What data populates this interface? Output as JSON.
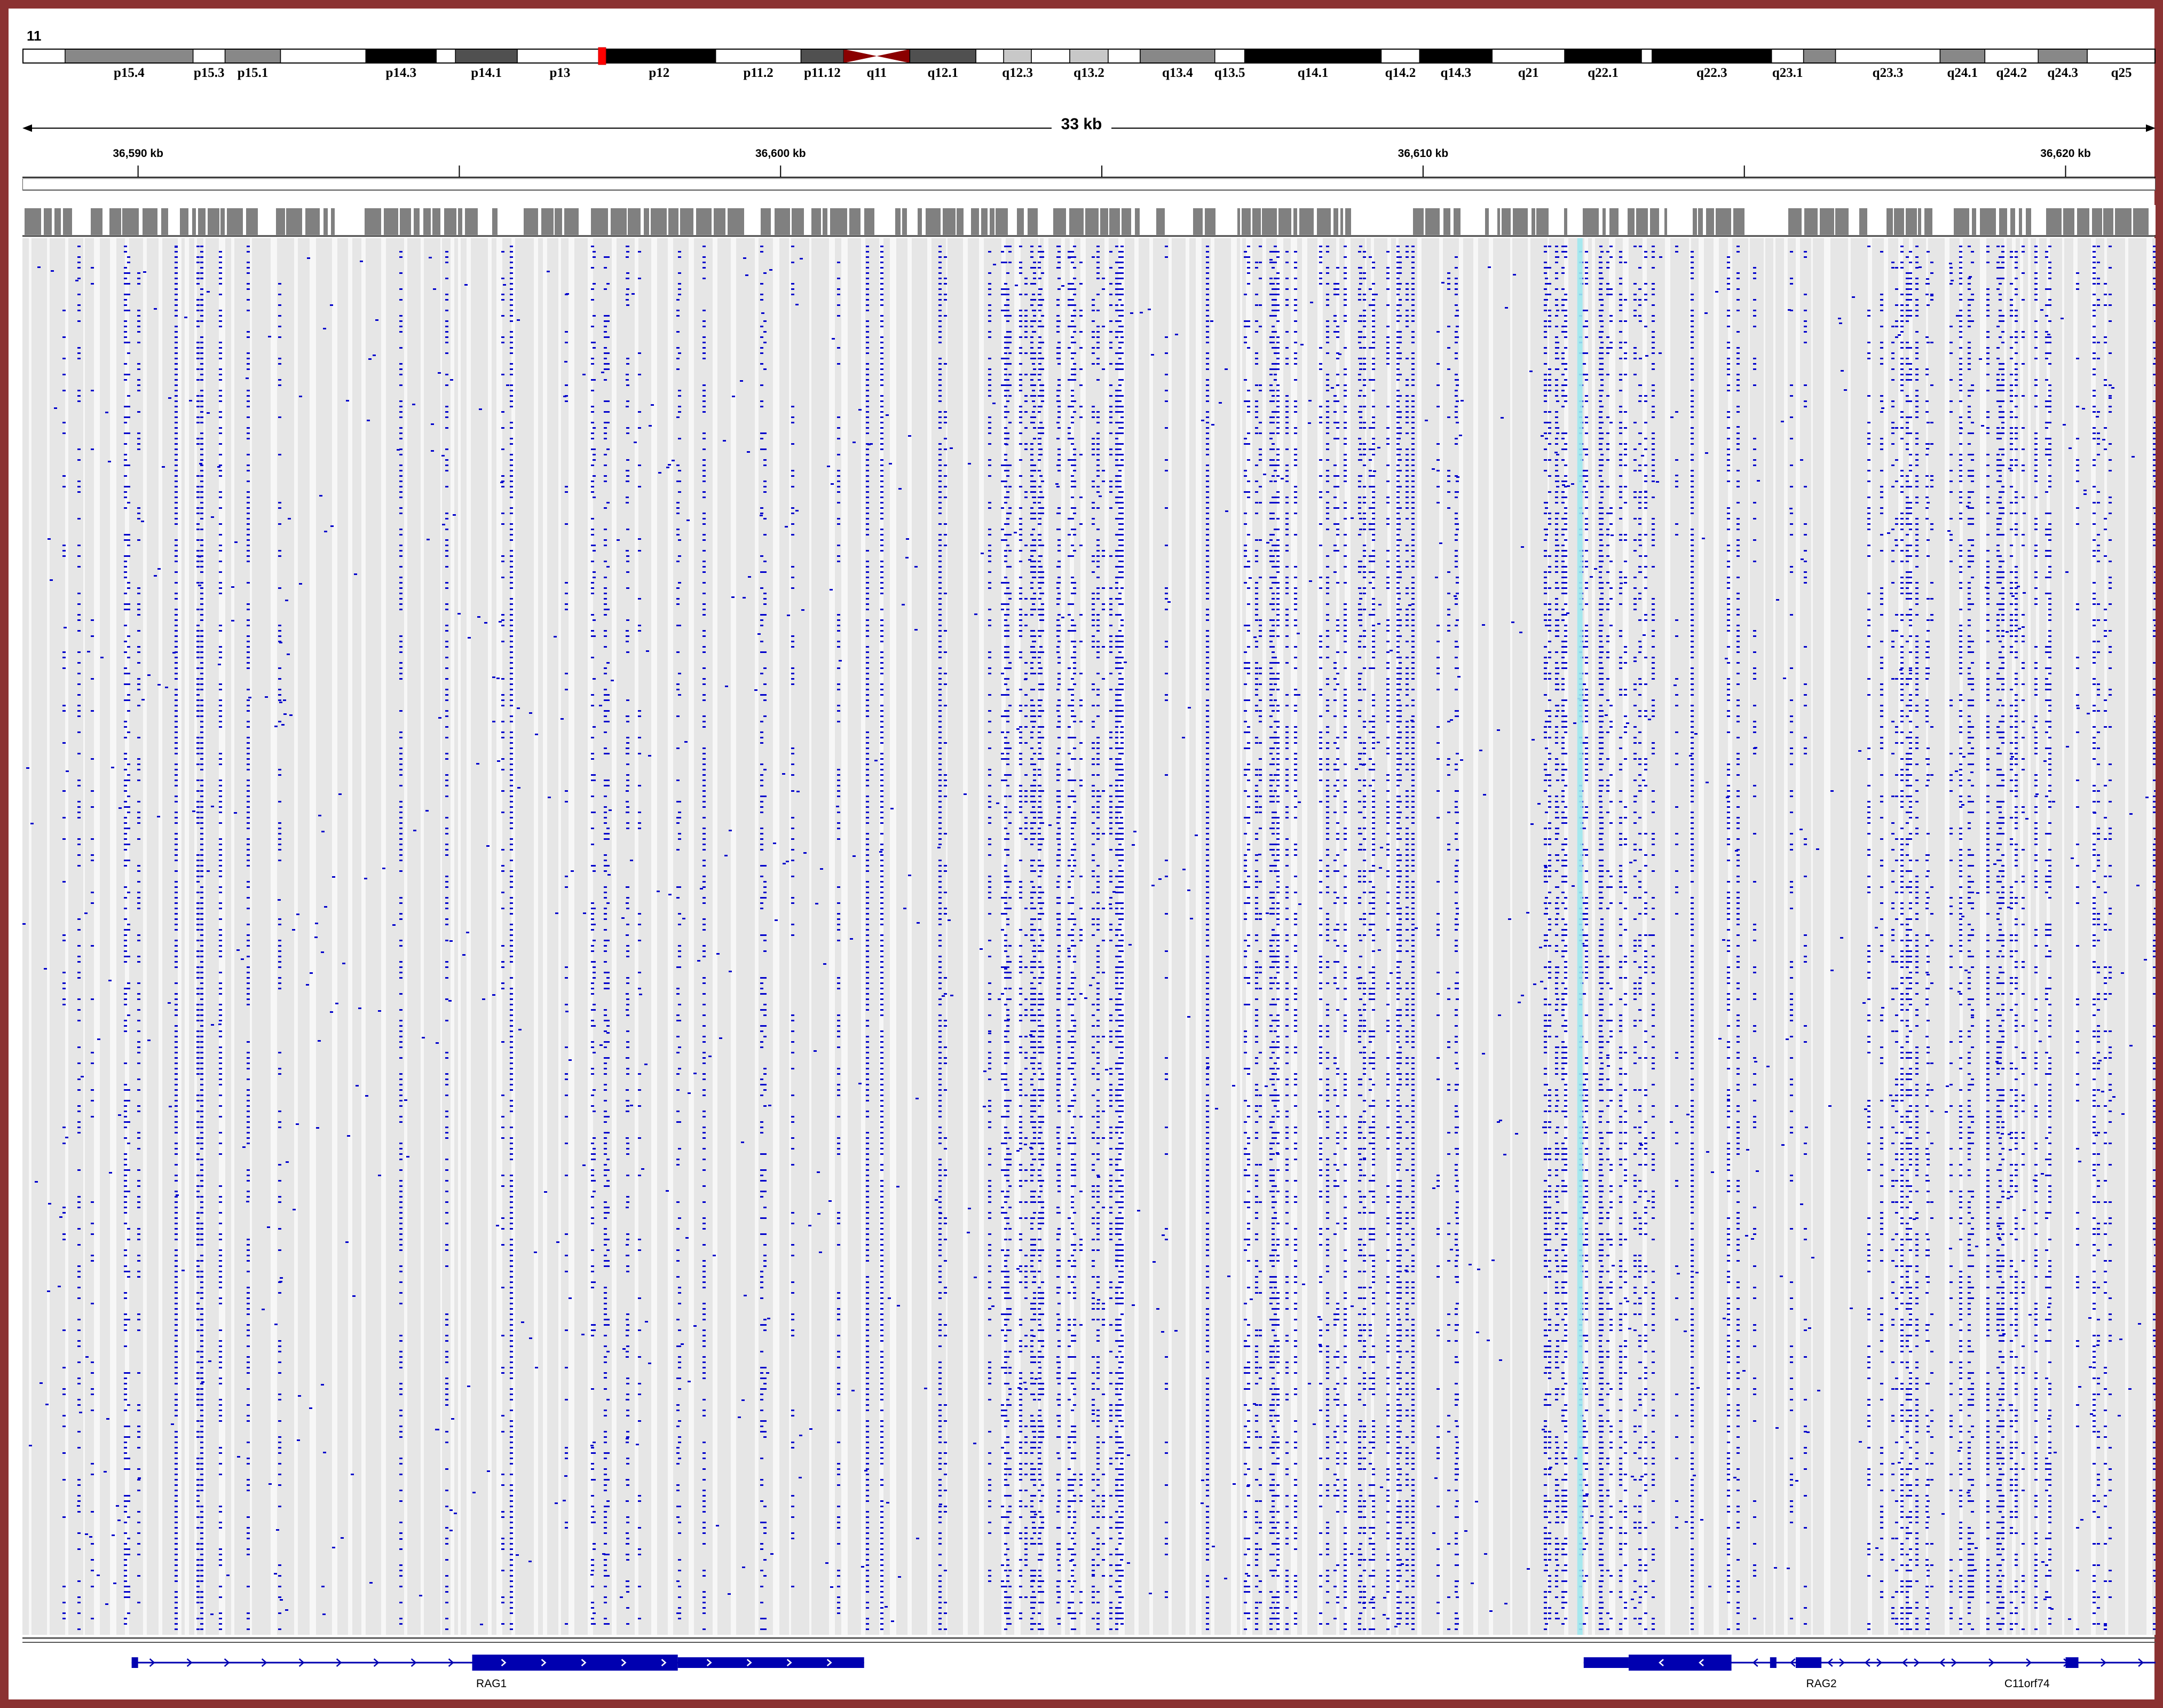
{
  "chromosome": "11",
  "ideogram": {
    "bands": [
      {
        "label": "p15.4",
        "x": 0.02,
        "w": 0.06,
        "stain": "gpos50"
      },
      {
        "label": "p15.3",
        "x": 0.08,
        "w": 0.015,
        "stain": "gneg"
      },
      {
        "label": "p15.1",
        "x": 0.095,
        "w": 0.026,
        "stain": "gpos50"
      },
      {
        "label": "",
        "x": 0.121,
        "w": 0.04,
        "stain": "gneg"
      },
      {
        "label": "p14.3",
        "x": 0.161,
        "w": 0.033,
        "stain": "gpos100"
      },
      {
        "label": "",
        "x": 0.194,
        "w": 0.009,
        "stain": "gneg"
      },
      {
        "label": "p14.1",
        "x": 0.203,
        "w": 0.029,
        "stain": "gpos75"
      },
      {
        "label": "p13",
        "x": 0.232,
        "w": 0.04,
        "stain": "gneg"
      },
      {
        "label": "p12",
        "x": 0.272,
        "w": 0.053,
        "stain": "gpos100"
      },
      {
        "label": "p11.2",
        "x": 0.325,
        "w": 0.04,
        "stain": "gneg"
      },
      {
        "label": "p11.12",
        "x": 0.365,
        "w": 0.02,
        "stain": "gpos75"
      },
      {
        "label": "q11",
        "x": 0.385,
        "w": 0.031,
        "stain": "acen"
      },
      {
        "label": "q12.1",
        "x": 0.416,
        "w": 0.031,
        "stain": "gpos75"
      },
      {
        "label": "",
        "x": 0.447,
        "w": 0.013,
        "stain": "gneg"
      },
      {
        "label": "q12.3",
        "x": 0.46,
        "w": 0.013,
        "stain": "gpos25"
      },
      {
        "label": "",
        "x": 0.473,
        "w": 0.018,
        "stain": "gneg"
      },
      {
        "label": "q13.2",
        "x": 0.491,
        "w": 0.018,
        "stain": "gpos25"
      },
      {
        "label": "",
        "x": 0.509,
        "w": 0.015,
        "stain": "gneg"
      },
      {
        "label": "q13.4",
        "x": 0.524,
        "w": 0.035,
        "stain": "gpos50"
      },
      {
        "label": "q13.5",
        "x": 0.559,
        "w": 0.014,
        "stain": "gneg"
      },
      {
        "label": "q14.1",
        "x": 0.573,
        "w": 0.064,
        "stain": "gpos100"
      },
      {
        "label": "q14.2",
        "x": 0.637,
        "w": 0.018,
        "stain": "gneg"
      },
      {
        "label": "q14.3",
        "x": 0.655,
        "w": 0.034,
        "stain": "gpos100"
      },
      {
        "label": "q21",
        "x": 0.689,
        "w": 0.034,
        "stain": "gneg"
      },
      {
        "label": "q22.1",
        "x": 0.723,
        "w": 0.036,
        "stain": "gpos100"
      },
      {
        "label": "",
        "x": 0.759,
        "w": 0.005,
        "stain": "gneg"
      },
      {
        "label": "q22.3",
        "x": 0.764,
        "w": 0.056,
        "stain": "gpos100"
      },
      {
        "label": "q23.1",
        "x": 0.82,
        "w": 0.015,
        "stain": "gneg"
      },
      {
        "label": "",
        "x": 0.835,
        "w": 0.015,
        "stain": "gpos50"
      },
      {
        "label": "q23.3",
        "x": 0.85,
        "w": 0.049,
        "stain": "gneg"
      },
      {
        "label": "q24.1",
        "x": 0.899,
        "w": 0.021,
        "stain": "gpos50"
      },
      {
        "label": "q24.2",
        "x": 0.92,
        "w": 0.025,
        "stain": "gneg"
      },
      {
        "label": "q24.3",
        "x": 0.945,
        "w": 0.023,
        "stain": "gpos50"
      },
      {
        "label": "q25",
        "x": 0.968,
        "w": 0.032,
        "stain": "gneg"
      }
    ],
    "current_view_x": 0.27,
    "stain_colors": {
      "gneg": "#ffffff",
      "gpos25": "#c8c8c8",
      "gpos50": "#888888",
      "gpos75": "#505050",
      "gpos100": "#000000",
      "acen": "#8b0000"
    }
  },
  "ruler": {
    "span_label": "33 kb",
    "start_kb": 36588.2,
    "end_kb": 36621.4,
    "ticks": [
      {
        "kb": 36590,
        "label": "36,590 kb"
      },
      {
        "kb": 36595,
        "label": ""
      },
      {
        "kb": 36600,
        "label": "36,600 kb"
      },
      {
        "kb": 36605,
        "label": ""
      },
      {
        "kb": 36610,
        "label": "36,610 kb"
      },
      {
        "kb": 36615,
        "label": ""
      },
      {
        "kb": 36620,
        "label": "36,620 kb"
      }
    ]
  },
  "alignment": {
    "read_color": "#e6e6e6",
    "mismatch_color": "#0000cc",
    "highlight_kb": 36612.4,
    "highlight_color": "#9fe8ee",
    "coverage_color": "#808080"
  },
  "genes": [
    {
      "name": "RAG1",
      "strand": "+",
      "start_kb": 36589.9,
      "end_kb": 36601.3,
      "exons": [
        [
          36589.9,
          36590.0
        ],
        [
          36595.2,
          36598.4
        ],
        [
          36598.4,
          36601.3
        ]
      ],
      "label_kb": 36595.5
    },
    {
      "name": "RAG2",
      "strand": "-",
      "start_kb": 36612.5,
      "end_kb": 36618.6,
      "exons": [
        [
          36612.5,
          36613.2
        ],
        [
          36613.2,
          36614.8
        ],
        [
          36615.4,
          36615.5
        ],
        [
          36615.8,
          36616.2
        ]
      ],
      "label_kb": 36616.2
    },
    {
      "name": "C11orf74",
      "strand": "+",
      "start_kb": 36616.2,
      "end_kb": 36621.4,
      "exons": [
        [
          36620.0,
          36620.2
        ]
      ],
      "label_kb": 36619.4
    }
  ]
}
